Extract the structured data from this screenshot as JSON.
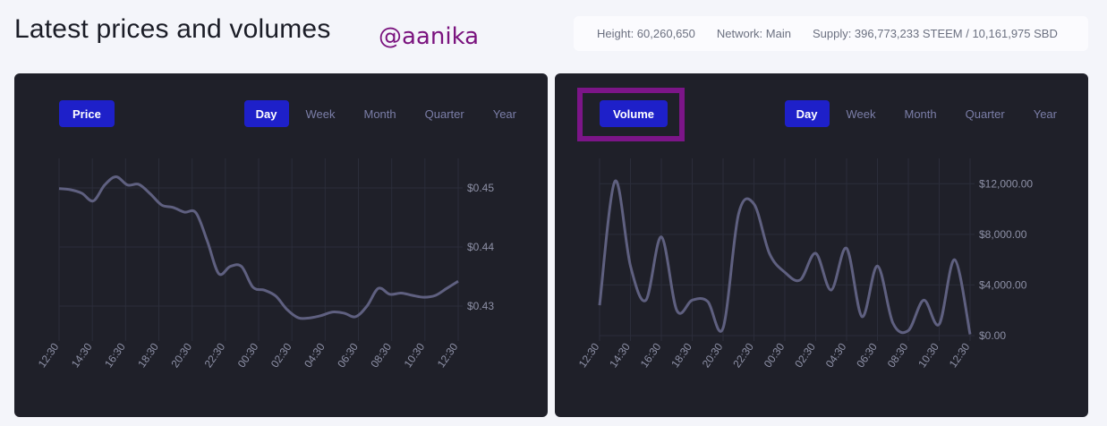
{
  "header": {
    "title": "Latest prices and volumes",
    "watermark": "@aanika"
  },
  "stats": {
    "height": "Height: 60,260,650",
    "network": "Network: Main",
    "supply": "Supply: 396,773,233 STEEM / 10,161,975 SBD"
  },
  "tabs": [
    "Day",
    "Week",
    "Month",
    "Quarter",
    "Year"
  ],
  "active_tab": "Day",
  "colors": {
    "panel": "#1f2029",
    "accent": "#1e20c9",
    "line": "#5f6080",
    "highlight": "#7c1588"
  },
  "panels": [
    {
      "button_label": "Price"
    },
    {
      "button_label": "Volume"
    }
  ],
  "chart_data": [
    {
      "type": "line",
      "title": "",
      "series": [
        {
          "values": [
            0.4499,
            0.4497,
            0.4491,
            0.4478,
            0.4505,
            0.4519,
            0.4505,
            0.4506,
            0.449,
            0.4471,
            0.4467,
            0.4459,
            0.4458,
            0.441,
            0.4355,
            0.4367,
            0.4367,
            0.4332,
            0.4327,
            0.4317,
            0.4294,
            0.428,
            0.428,
            0.4284,
            0.429,
            0.4288,
            0.4282,
            0.43,
            0.433,
            0.432,
            0.4322,
            0.4318,
            0.4315,
            0.4318,
            0.433,
            0.4342
          ]
        }
      ],
      "x_ticks": [
        "12:30",
        "14:30",
        "16:30",
        "18:30",
        "20:30",
        "22:30",
        "00:30",
        "02:30",
        "04:30",
        "06:30",
        "08:30",
        "10:30",
        "12:30"
      ],
      "y_ticks": [
        "$0.45",
        "$0.44",
        "$0.43"
      ],
      "y_tick_values": [
        0.45,
        0.44,
        0.43
      ],
      "ylim": [
        0.425,
        0.455
      ],
      "grid": true
    },
    {
      "type": "line",
      "title": "",
      "series": [
        {
          "values": [
            2400,
            12200,
            5500,
            2800,
            7800,
            2000,
            2800,
            2700,
            600,
            9600,
            10400,
            6500,
            5000,
            4400,
            6500,
            3600,
            6900,
            1500,
            5500,
            1000,
            400,
            2800,
            900,
            6000,
            100
          ]
        }
      ],
      "x_ticks": [
        "12:30",
        "14:30",
        "16:30",
        "18:30",
        "20:30",
        "22:30",
        "00:30",
        "02:30",
        "04:30",
        "06:30",
        "08:30",
        "10:30",
        "12:30"
      ],
      "y_ticks": [
        "$12,000.00",
        "$8,000.00",
        "$4,000.00",
        "$0.00"
      ],
      "y_tick_values": [
        12000,
        8000,
        4000,
        0
      ],
      "ylim": [
        0,
        14000
      ],
      "grid": true
    }
  ]
}
